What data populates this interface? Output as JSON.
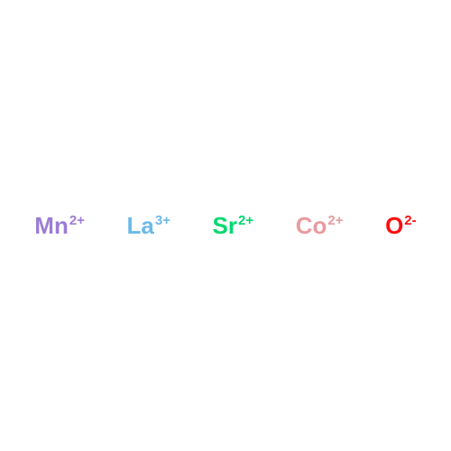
{
  "diagram": {
    "type": "chemical-ions",
    "background_color": "#ffffff",
    "ions": [
      {
        "element": "Mn",
        "charge": "2+",
        "color": "#9b7dd4"
      },
      {
        "element": "La",
        "charge": "3+",
        "color": "#6db9e8"
      },
      {
        "element": "Sr",
        "charge": "2+",
        "color": "#00d96f"
      },
      {
        "element": "Co",
        "charge": "2+",
        "color": "#e89ba0"
      },
      {
        "element": "O",
        "charge": "2-",
        "color": "#ff0d0d"
      }
    ],
    "element_fontsize": 26,
    "charge_fontsize": 15,
    "font_weight": "bold"
  }
}
